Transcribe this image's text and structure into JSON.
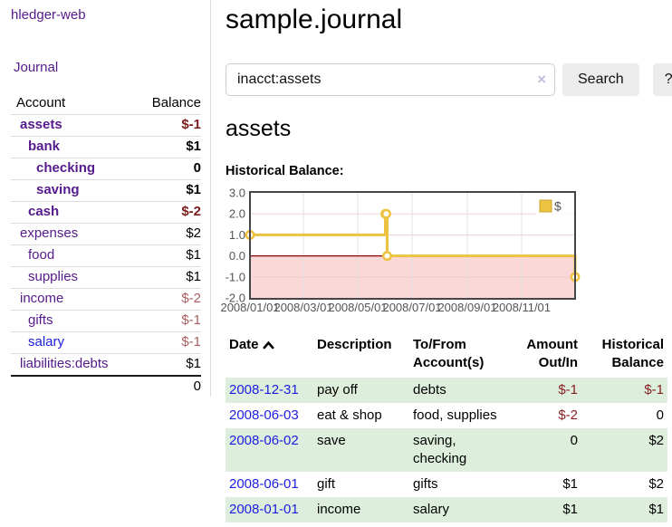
{
  "colors": {
    "link_purple": "#551a8b",
    "link_blue": "#1d1de0",
    "negative_strong": "#7f1c1c",
    "negative_soft": "#ad5f5f",
    "table_negative": "#862121",
    "row_stripe_green": "#ddeedd",
    "button_background": "#ececec",
    "chart_line_gold": "#edc240",
    "chart_negative_region_pink": "#fbd8d8",
    "chart_zero_line_red": "#8b0000"
  },
  "sidebar": {
    "app_title": "hledger-web",
    "nav": [
      {
        "label": "Journal"
      }
    ],
    "accounts": {
      "col_account": "Account",
      "col_balance": "Balance",
      "rows": [
        {
          "name": "assets",
          "indent": 0,
          "bold": true,
          "balance": "$-1",
          "neg": "strong"
        },
        {
          "name": "bank",
          "indent": 1,
          "bold": true,
          "balance": "$1",
          "neg": null
        },
        {
          "name": "checking",
          "indent": 2,
          "bold": true,
          "balance": "0",
          "neg": null
        },
        {
          "name": "saving",
          "indent": 2,
          "bold": true,
          "balance": "$1",
          "neg": null
        },
        {
          "name": "cash",
          "indent": 1,
          "bold": true,
          "balance": "$-2",
          "neg": "strong"
        },
        {
          "name": "expenses",
          "indent": 0,
          "bold": false,
          "balance": "$2",
          "neg": null
        },
        {
          "name": "food",
          "indent": 1,
          "bold": false,
          "balance": "$1",
          "neg": null
        },
        {
          "name": "supplies",
          "indent": 1,
          "bold": false,
          "balance": "$1",
          "neg": null
        },
        {
          "name": "income",
          "indent": 0,
          "bold": false,
          "balance": "$-2",
          "neg": "soft"
        },
        {
          "name": "gifts",
          "indent": 1,
          "bold": false,
          "balance": "$-1",
          "neg": "soft"
        },
        {
          "name": "salary",
          "indent": 1,
          "bold": false,
          "balance": "$-1",
          "neg": "soft",
          "blue": true
        },
        {
          "name": "liabilities:debts",
          "indent": 0,
          "bold": false,
          "balance": "$1",
          "neg": null
        }
      ],
      "total": "0"
    }
  },
  "main": {
    "title": "sample.journal",
    "search": {
      "value": "inacct:assets",
      "clear_icon": "×",
      "search_button": "Search",
      "help_button": "?"
    },
    "account_heading": "assets",
    "chart_title": "Historical Balance:"
  },
  "chart_data": {
    "type": "line",
    "title": "Historical Balance:",
    "step": true,
    "series": [
      {
        "name": "$",
        "color": "#edc240",
        "points": [
          {
            "date": "2008-01-01",
            "value": 1
          },
          {
            "date": "2008-06-01",
            "value": 2
          },
          {
            "date": "2008-06-02",
            "value": 2
          },
          {
            "date": "2008-06-03",
            "value": 0
          },
          {
            "date": "2008-12-31",
            "value": -1
          }
        ]
      }
    ],
    "x_range": [
      "2008-01-01",
      "2008-12-31"
    ],
    "x_ticks": [
      "2008/01/01",
      "2008/03/01",
      "2008/05/01",
      "2008/07/01",
      "2008/09/01",
      "2008/11/01"
    ],
    "y_ticks": [
      3.0,
      2.0,
      1.0,
      0.0,
      -1.0,
      -2.0
    ],
    "ylim": [
      -2,
      3
    ],
    "grid": true,
    "legend": {
      "label": "$",
      "position": "top-right"
    },
    "negative_region_shaded": true
  },
  "register": {
    "columns": [
      {
        "line1": "Date",
        "line2": "",
        "align": "left",
        "sorted": "asc"
      },
      {
        "line1": "Description",
        "line2": "",
        "align": "left"
      },
      {
        "line1": "To/From",
        "line2": "Account(s)",
        "align": "left"
      },
      {
        "line1": "Amount",
        "line2": "Out/In",
        "align": "right"
      },
      {
        "line1": "Historical",
        "line2": "Balance",
        "align": "right"
      }
    ],
    "rows": [
      {
        "date": "2008-12-31",
        "description": "pay off",
        "accounts": "debts",
        "amount": "$-1",
        "amount_neg": true,
        "balance": "$-1",
        "balance_neg": true
      },
      {
        "date": "2008-06-03",
        "description": "eat & shop",
        "accounts": "food, supplies",
        "amount": "$-2",
        "amount_neg": true,
        "balance": "0",
        "balance_neg": false
      },
      {
        "date": "2008-06-02",
        "description": "save",
        "accounts": "saving, checking",
        "amount": "0",
        "amount_neg": false,
        "balance": "$2",
        "balance_neg": false
      },
      {
        "date": "2008-06-01",
        "description": "gift",
        "accounts": "gifts",
        "amount": "$1",
        "amount_neg": false,
        "balance": "$2",
        "balance_neg": false
      },
      {
        "date": "2008-01-01",
        "description": "income",
        "accounts": "salary",
        "amount": "$1",
        "amount_neg": false,
        "balance": "$1",
        "balance_neg": false
      }
    ]
  }
}
